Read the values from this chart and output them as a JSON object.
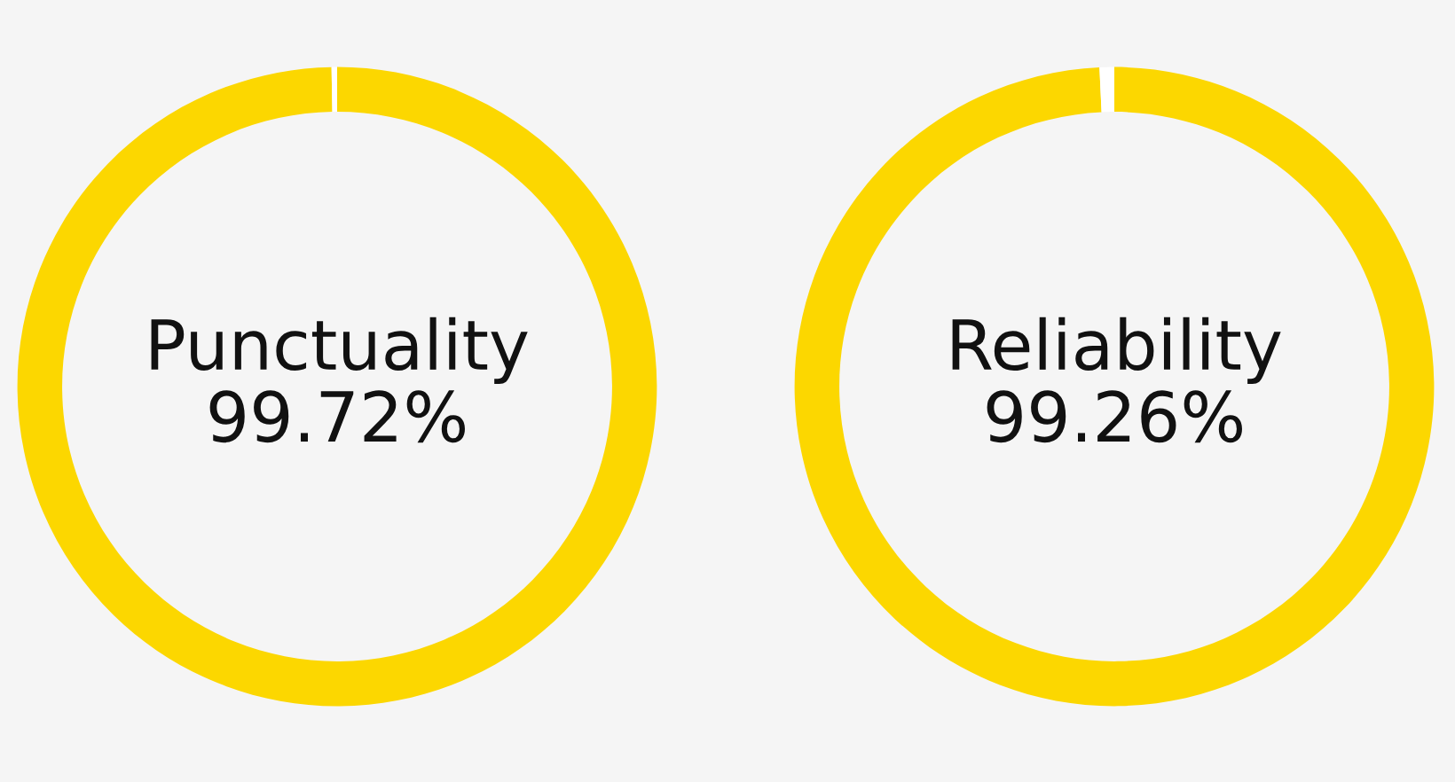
{
  "chart_data": [
    {
      "type": "donut",
      "title": "Punctuality\n99.72%",
      "categories": [
        null,
        null
      ],
      "values": [
        99.72,
        0.28
      ],
      "colors": [
        "#fcd700",
        "#ffffff"
      ]
    },
    {
      "type": "donut",
      "title": "Reliability\n99.26%",
      "categories": [
        null,
        null
      ],
      "values": [
        99.26,
        0.74
      ],
      "colors": [
        "#fcd700",
        "#ffffff"
      ]
    }
  ]
}
